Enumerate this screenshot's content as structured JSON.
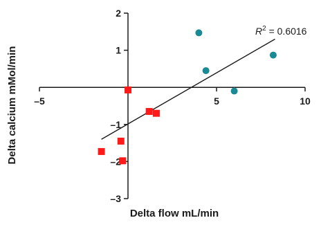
{
  "chart_data": {
    "type": "scatter",
    "xlabel": "Delta flow mL/min",
    "ylabel": "Delta calcium mMol/min",
    "xlim": [
      -5,
      10
    ],
    "ylim": [
      -3,
      2
    ],
    "x_ticks": [
      -5,
      5,
      10
    ],
    "y_ticks": [
      2,
      1,
      -1,
      -2,
      -3
    ],
    "x_tick_labels": [
      "–5",
      "5",
      "10"
    ],
    "y_tick_labels": [
      "2",
      "1",
      "–1",
      "–2",
      "–3"
    ],
    "grid": false,
    "series": [
      {
        "marker": "circle",
        "color": "#1a8a96",
        "points": [
          [
            4.0,
            1.47
          ],
          [
            4.4,
            0.45
          ],
          [
            6.0,
            -0.1
          ],
          [
            8.2,
            0.87
          ]
        ]
      },
      {
        "marker": "square",
        "color": "#ff1a1a",
        "points": [
          [
            0.0,
            -0.07
          ],
          [
            1.2,
            -0.65
          ],
          [
            1.6,
            -0.7
          ],
          [
            -0.4,
            -1.45
          ],
          [
            -0.3,
            -1.98
          ],
          [
            -1.5,
            -1.73
          ]
        ]
      }
    ],
    "trendline": {
      "x": [
        -1.5,
        8.3
      ],
      "y": [
        -1.4,
        1.3
      ],
      "color": "#1a1a1a"
    },
    "annotation": {
      "r_label": "R",
      "r_sup": "2",
      "r_value": " = 0.6016"
    }
  }
}
